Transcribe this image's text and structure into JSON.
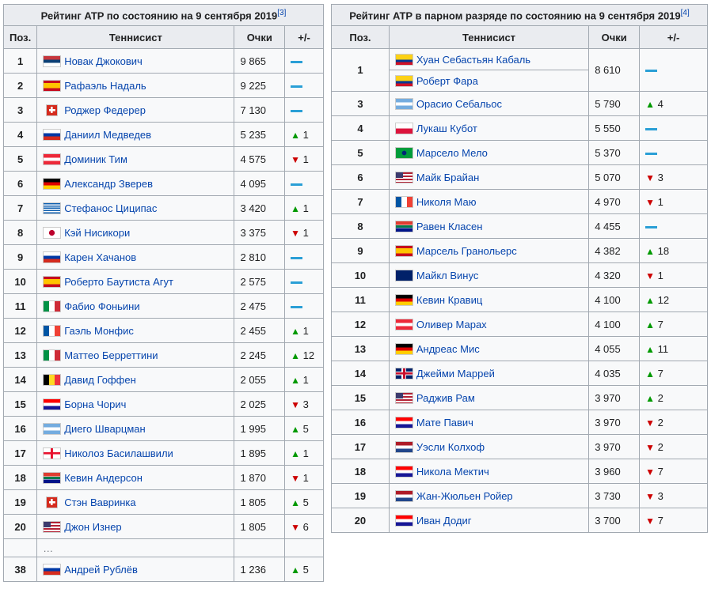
{
  "singles": {
    "caption": "Рейтинг ATP по состоянию на 9 сентября 2019",
    "ref": "[3]",
    "headers": {
      "pos": "Поз.",
      "player": "Теннисист",
      "points": "Очки",
      "change": "+/-"
    },
    "rows": [
      {
        "pos": "1",
        "name": "Новак Джокович",
        "flag": "srb",
        "points": "9 865",
        "dir": "same",
        "delta": ""
      },
      {
        "pos": "2",
        "name": "Рафаэль Надаль",
        "flag": "esp",
        "points": "9 225",
        "dir": "same",
        "delta": ""
      },
      {
        "pos": "3",
        "name": "Роджер Федерер",
        "flag": "sui",
        "points": "7 130",
        "dir": "same",
        "delta": ""
      },
      {
        "pos": "4",
        "name": "Даниил Медведев",
        "flag": "rus",
        "points": "5 235",
        "dir": "up",
        "delta": "1"
      },
      {
        "pos": "5",
        "name": "Доминик Тим",
        "flag": "aut",
        "points": "4 575",
        "dir": "down",
        "delta": "1"
      },
      {
        "pos": "6",
        "name": "Александр Зверев",
        "flag": "ger",
        "points": "4 095",
        "dir": "same",
        "delta": ""
      },
      {
        "pos": "7",
        "name": "Стефанос Циципас",
        "flag": "gre",
        "points": "3 420",
        "dir": "up",
        "delta": "1"
      },
      {
        "pos": "8",
        "name": "Кэй Нисикори",
        "flag": "jpn",
        "points": "3 375",
        "dir": "down",
        "delta": "1"
      },
      {
        "pos": "9",
        "name": "Карен Хачанов",
        "flag": "rus",
        "points": "2 810",
        "dir": "same",
        "delta": ""
      },
      {
        "pos": "10",
        "name": "Роберто Баутиста Агут",
        "flag": "esp",
        "points": "2 575",
        "dir": "same",
        "delta": ""
      },
      {
        "pos": "11",
        "name": "Фабио Фоньини",
        "flag": "ita",
        "points": "2 475",
        "dir": "same",
        "delta": ""
      },
      {
        "pos": "12",
        "name": "Гаэль Монфис",
        "flag": "fra",
        "points": "2 455",
        "dir": "up",
        "delta": "1"
      },
      {
        "pos": "13",
        "name": "Маттео Берреттини",
        "flag": "ita",
        "points": "2 245",
        "dir": "up",
        "delta": "12"
      },
      {
        "pos": "14",
        "name": "Давид Гоффен",
        "flag": "bel",
        "points": "2 055",
        "dir": "up",
        "delta": "1"
      },
      {
        "pos": "15",
        "name": "Борна Чорич",
        "flag": "cro",
        "points": "2 025",
        "dir": "down",
        "delta": "3"
      },
      {
        "pos": "16",
        "name": "Диего Шварцман",
        "flag": "arg",
        "points": "1 995",
        "dir": "up",
        "delta": "5"
      },
      {
        "pos": "17",
        "name": "Николоз Басилашвили",
        "flag": "geo",
        "points": "1 895",
        "dir": "up",
        "delta": "1"
      },
      {
        "pos": "18",
        "name": "Кевин Андерсон",
        "flag": "rsa",
        "points": "1 870",
        "dir": "down",
        "delta": "1"
      },
      {
        "pos": "19",
        "name": "Стэн Вавринка",
        "flag": "sui",
        "points": "1 805",
        "dir": "up",
        "delta": "5"
      },
      {
        "pos": "20",
        "name": "Джон Изнер",
        "flag": "usa",
        "points": "1 805",
        "dir": "down",
        "delta": "6"
      }
    ],
    "ellipsis": "…",
    "extra": {
      "pos": "38",
      "name": "Андрей Рублёв",
      "flag": "rus",
      "points": "1 236",
      "dir": "up",
      "delta": "5"
    }
  },
  "doubles": {
    "caption": "Рейтинг ATP в парном разряде по состоянию на 9 сентября 2019",
    "ref": "[4]",
    "headers": {
      "pos": "Поз.",
      "player": "Теннисист",
      "points": "Очки",
      "change": "+/-"
    },
    "pair": {
      "pos": "1",
      "names": [
        {
          "name": "Хуан Себастьян Кабаль",
          "flag": "col"
        },
        {
          "name": "Роберт Фара",
          "flag": "col"
        }
      ],
      "points": "8 610",
      "dir": "same",
      "delta": ""
    },
    "rows": [
      {
        "pos": "3",
        "name": "Орасио Себальос",
        "flag": "arg",
        "points": "5 790",
        "dir": "up",
        "delta": "4"
      },
      {
        "pos": "4",
        "name": "Лукаш Кубот",
        "flag": "pol",
        "points": "5 550",
        "dir": "same",
        "delta": ""
      },
      {
        "pos": "5",
        "name": "Марсело Мело",
        "flag": "bra",
        "points": "5 370",
        "dir": "same",
        "delta": ""
      },
      {
        "pos": "6",
        "name": "Майк Брайан",
        "flag": "usa",
        "points": "5 070",
        "dir": "down",
        "delta": "3"
      },
      {
        "pos": "7",
        "name": "Николя Маю",
        "flag": "fra",
        "points": "4 970",
        "dir": "down",
        "delta": "1"
      },
      {
        "pos": "8",
        "name": "Равен Класен",
        "flag": "rsa",
        "points": "4 455",
        "dir": "same",
        "delta": ""
      },
      {
        "pos": "9",
        "name": "Марсель Гранольерс",
        "flag": "esp",
        "points": "4 382",
        "dir": "up",
        "delta": "18"
      },
      {
        "pos": "10",
        "name": "Майкл Винус",
        "flag": "nzl",
        "points": "4 320",
        "dir": "down",
        "delta": "1"
      },
      {
        "pos": "11",
        "name": "Кевин Кравиц",
        "flag": "ger",
        "points": "4 100",
        "dir": "up",
        "delta": "12"
      },
      {
        "pos": "12",
        "name": "Оливер Марах",
        "flag": "aut",
        "points": "4 100",
        "dir": "up",
        "delta": "7"
      },
      {
        "pos": "13",
        "name": "Андреас Мис",
        "flag": "ger",
        "points": "4 055",
        "dir": "up",
        "delta": "11"
      },
      {
        "pos": "14",
        "name": "Джейми Маррей",
        "flag": "gbr",
        "points": "4 035",
        "dir": "up",
        "delta": "7"
      },
      {
        "pos": "15",
        "name": "Раджив Рам",
        "flag": "usa",
        "points": "3 970",
        "dir": "up",
        "delta": "2"
      },
      {
        "pos": "16",
        "name": "Мате Павич",
        "flag": "cro",
        "points": "3 970",
        "dir": "down",
        "delta": "2"
      },
      {
        "pos": "17",
        "name": "Уэсли Колхоф",
        "flag": "ned",
        "points": "3 970",
        "dir": "down",
        "delta": "2"
      },
      {
        "pos": "18",
        "name": "Никола Мектич",
        "flag": "cro",
        "points": "3 960",
        "dir": "down",
        "delta": "7"
      },
      {
        "pos": "19",
        "name": "Жан-Жюльен Ройер",
        "flag": "ned",
        "points": "3 730",
        "dir": "down",
        "delta": "3"
      },
      {
        "pos": "20",
        "name": "Иван Додиг",
        "flag": "cro",
        "points": "3 700",
        "dir": "down",
        "delta": "7"
      }
    ]
  },
  "colors": {
    "link": "#0645ad",
    "up": "#009900",
    "down": "#cc0000",
    "same": "#2a9fd6",
    "header_bg": "#eaecf0",
    "border": "#a2a9b1"
  }
}
